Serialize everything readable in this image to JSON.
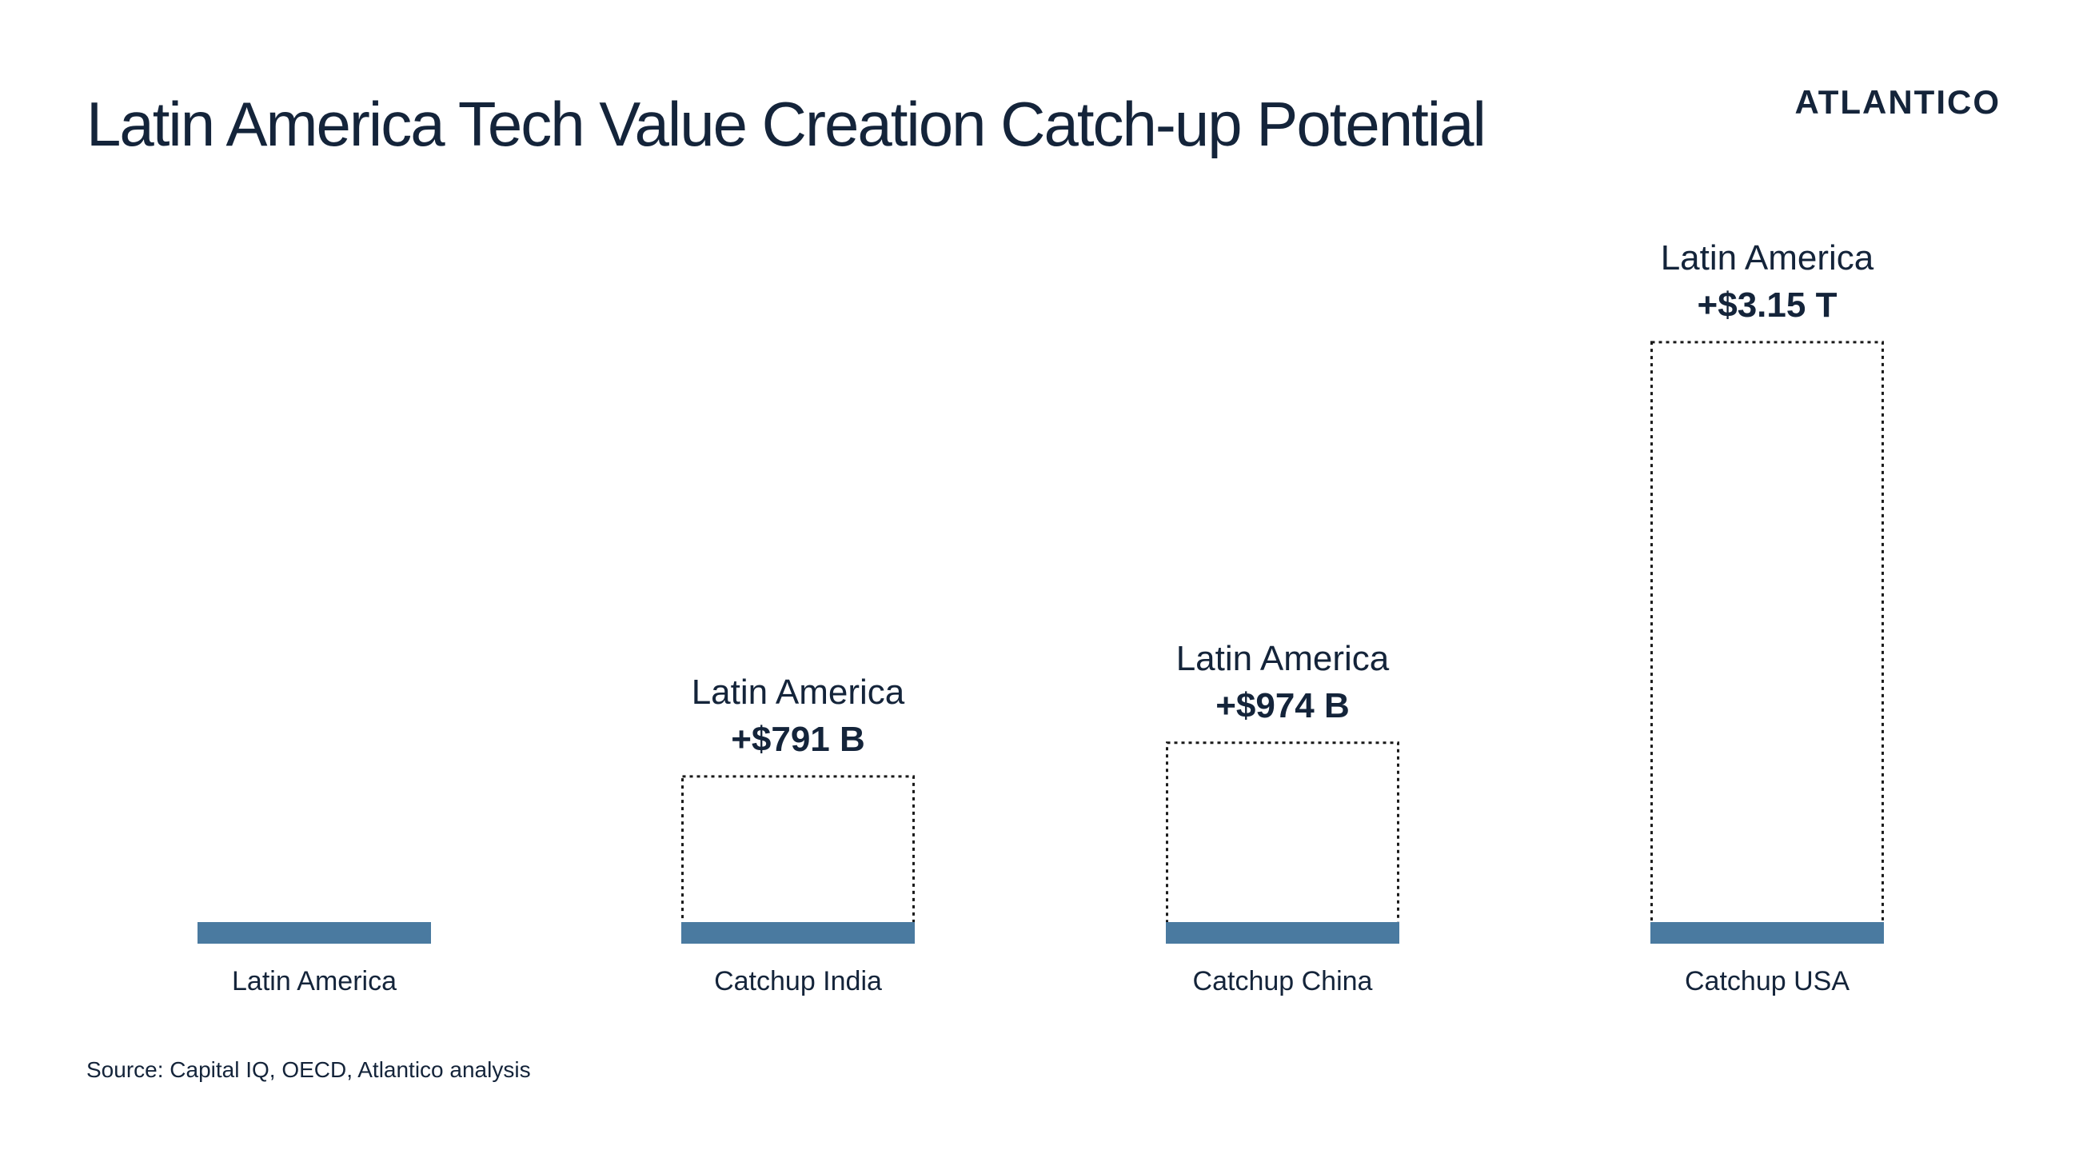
{
  "slide": {
    "title": "Latin America Tech Value Creation Catch-up Potential",
    "logo_text": "ATLANTICO",
    "source": "Source: Capital IQ, OECD, Atlantico analysis"
  },
  "chart_data": {
    "type": "bar",
    "categories": [
      "Latin America",
      "Catchup India",
      "Catchup China",
      "Catchup USA"
    ],
    "base_value_label": null,
    "series": [
      {
        "kind": "base",
        "values": [
          1,
          1,
          1,
          1
        ]
      },
      {
        "kind": "catch-up potential",
        "values": [
          0,
          791,
          974,
          3150
        ],
        "unit": "$B"
      }
    ],
    "annotations": [
      {
        "category": "Latin America",
        "line1": "",
        "line2": ""
      },
      {
        "category": "Catchup India",
        "line1": "Latin America",
        "line2": "+$791 B"
      },
      {
        "category": "Catchup China",
        "line1": "Latin America",
        "line2": "+$974 B"
      },
      {
        "category": "Catchup USA",
        "line1": "Latin America",
        "line2": "+$3.15 T"
      }
    ],
    "colors": {
      "base_bar": "#4a7aa0",
      "potential_outline": "#1a1a1a",
      "text": "#14243a"
    },
    "grid": false,
    "legend": "none"
  }
}
